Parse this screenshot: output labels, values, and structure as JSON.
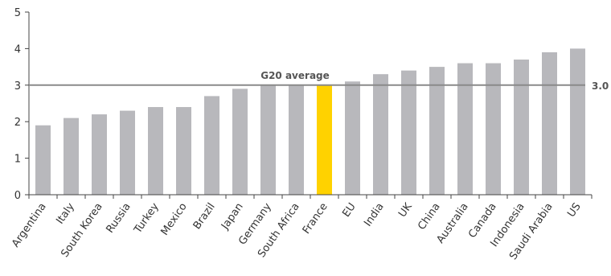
{
  "chart_data": {
    "type": "bar",
    "categories": [
      "Argentina",
      "Italy",
      "South Korea",
      "Russia",
      "Turkey",
      "Mexico",
      "Brazil",
      "Japan",
      "Germany",
      "South Africa",
      "France",
      "EU",
      "India",
      "UK",
      "China",
      "Australia",
      "Canada",
      "Indonesia",
      "Saudi Arabia",
      "US"
    ],
    "values": [
      1.9,
      2.1,
      2.2,
      2.3,
      2.4,
      2.4,
      2.7,
      2.9,
      3.0,
      3.0,
      3.0,
      3.1,
      3.3,
      3.4,
      3.5,
      3.6,
      3.6,
      3.7,
      3.9,
      4.0
    ],
    "highlight_category": "France",
    "ylim": [
      0,
      5
    ],
    "yticks": [
      "0",
      "1",
      "2",
      "3",
      "4",
      "5"
    ],
    "reference_line": {
      "label": "G20 average",
      "value": 3.0,
      "value_label": "3.0"
    },
    "colors": {
      "bar": "#b8b8bc",
      "highlight": "#ffd200",
      "reference_line": "#8a8a8a",
      "axis": "#444444"
    },
    "grid": false
  }
}
